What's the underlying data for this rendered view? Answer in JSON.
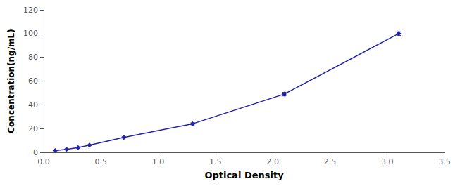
{
  "chart_data": {
    "type": "line",
    "xlabel": "Optical Density",
    "ylabel": "Concentration(ng/mL)",
    "x": [
      0.1,
      0.2,
      0.3,
      0.4,
      0.7,
      1.3,
      2.1,
      3.1
    ],
    "values": [
      1.5,
      2.5,
      4.0,
      6.0,
      12.5,
      24.0,
      49.0,
      100.0
    ],
    "errors": [
      0.3,
      0.3,
      0.3,
      0.3,
      0.5,
      0.8,
      1.5,
      1.5
    ],
    "color": "#2222aa",
    "marker": "diamond",
    "xlim": [
      0,
      3.5
    ],
    "ylim": [
      0,
      120
    ],
    "xticks": [
      {
        "value": 0,
        "label": "0.0"
      },
      {
        "value": 0.5,
        "label": "0.5"
      },
      {
        "value": 1.0,
        "label": "1.0"
      },
      {
        "value": 1.5,
        "label": "1.5"
      },
      {
        "value": 2.0,
        "label": "2.0"
      },
      {
        "value": 2.5,
        "label": "2.5"
      },
      {
        "value": 3.0,
        "label": "3.0"
      },
      {
        "value": 3.5,
        "label": "3.5"
      }
    ],
    "yticks": [
      0,
      20,
      40,
      60,
      80,
      100,
      120
    ],
    "grid": false
  }
}
